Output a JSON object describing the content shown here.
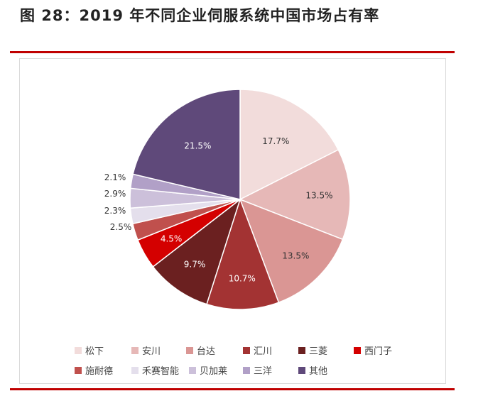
{
  "figure": {
    "title": "图 28：2019 年不同企业伺服系统中国市场占有率"
  },
  "chart_data": {
    "type": "pie",
    "title": "图 28：2019 年不同企业伺服系统中国市场占有率",
    "start_angle": "12 o'clock",
    "direction": "clockwise",
    "legend_position": "bottom",
    "slices": [
      {
        "name": "松下",
        "value": 17.7,
        "label": "17.7%",
        "color": "#f2dcdb"
      },
      {
        "name": "安川",
        "value": 13.5,
        "label": "13.5%",
        "color": "#e6b8b7"
      },
      {
        "name": "台达",
        "value": 13.5,
        "label": "13.5%",
        "color": "#da9694"
      },
      {
        "name": "汇川",
        "value": 10.7,
        "label": "10.7%",
        "color": "#a33333"
      },
      {
        "name": "三菱",
        "value": 9.7,
        "label": "9.7%",
        "color": "#6b2020"
      },
      {
        "name": "西门子",
        "value": 4.5,
        "label": "4.5%",
        "color": "#d40000"
      },
      {
        "name": "施耐德",
        "value": 2.5,
        "label": "2.5%",
        "color": "#c0504d"
      },
      {
        "name": "禾赛智能",
        "value": 2.3,
        "label": "2.3%",
        "color": "#e4dfec"
      },
      {
        "name": "贝加莱",
        "value": 2.9,
        "label": "2.9%",
        "color": "#ccc0da"
      },
      {
        "name": "三洋",
        "value": 2.1,
        "label": "2.1%",
        "color": "#b1a0c7"
      },
      {
        "name": "其他",
        "value": 21.5,
        "label": "21.5%",
        "color": "#5f497a"
      }
    ]
  }
}
